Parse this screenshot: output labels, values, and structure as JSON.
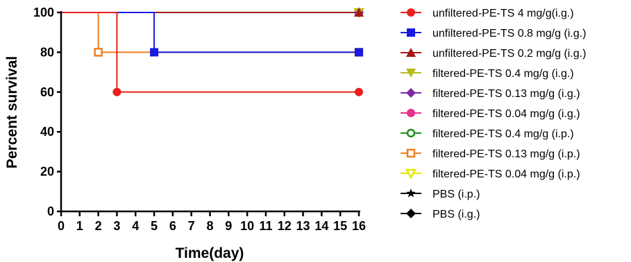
{
  "chart_data": {
    "type": "line",
    "step": true,
    "xlabel": "Time(day)",
    "ylabel": "Percent survival",
    "xlim": [
      0,
      16
    ],
    "ylim": [
      0,
      100
    ],
    "xticks": [
      "0",
      "1",
      "2",
      "3",
      "4",
      "5",
      "6",
      "7",
      "8",
      "9",
      "10",
      "11",
      "12",
      "13",
      "14",
      "15",
      "16"
    ],
    "yticks": [
      "0",
      "20",
      "40",
      "60",
      "80",
      "100"
    ],
    "grid": false,
    "legend_position": "right",
    "series": [
      {
        "name": "unfiltered-PE-TS 4 mg/g(i.g.)",
        "color": "#e8201c",
        "marker": "circle-filled",
        "x": [
          0,
          3,
          16
        ],
        "y": [
          100,
          60,
          60
        ],
        "markers": [
          [
            3,
            60
          ],
          [
            16,
            60
          ]
        ]
      },
      {
        "name": "unfiltered-PE-TS 0.8 mg/g (i.g.)",
        "color": "#1a1adf",
        "marker": "square-filled",
        "x": [
          0,
          5,
          16
        ],
        "y": [
          100,
          80,
          80
        ],
        "markers": [
          [
            5,
            80
          ],
          [
            16,
            80
          ]
        ]
      },
      {
        "name": "unfiltered-PE-TS 0.2 mg/g (i.g.)",
        "color": "#a31818",
        "marker": "triangle-up-filled",
        "x": [
          0,
          16
        ],
        "y": [
          100,
          100
        ],
        "markers": [
          [
            16,
            100
          ]
        ]
      },
      {
        "name": "filtered-PE-TS 0.4 mg/g (i.g.)",
        "color": "#b9b91e",
        "marker": "triangle-down-filled",
        "x": [
          0,
          16
        ],
        "y": [
          100,
          100
        ],
        "markers": [
          [
            16,
            100
          ]
        ]
      },
      {
        "name": "filtered-PE-TS 0.13 mg/g (i.g.)",
        "color": "#7b2ba3",
        "marker": "diamond-filled",
        "x": [
          0,
          16
        ],
        "y": [
          100,
          100
        ],
        "markers": [
          [
            16,
            100
          ]
        ]
      },
      {
        "name": "filtered-PE-TS 0.04 mg/g (i.g.)",
        "color": "#e8308c",
        "marker": "circle-filled",
        "x": [
          0,
          16
        ],
        "y": [
          100,
          100
        ],
        "markers": [
          [
            16,
            100
          ]
        ]
      },
      {
        "name": "filtered-PE-TS 0.4 mg/g (i.p.)",
        "color": "#1a8f1a",
        "marker": "circle-open",
        "x": [
          0,
          16
        ],
        "y": [
          100,
          100
        ],
        "markers": [
          [
            16,
            100
          ]
        ]
      },
      {
        "name": "filtered-PE-TS 0.13 mg/g (i.p.)",
        "color": "#f07f20",
        "marker": "square-open",
        "x": [
          0,
          2,
          16
        ],
        "y": [
          100,
          80,
          80
        ],
        "markers": [
          [
            2,
            80
          ],
          [
            16,
            80
          ]
        ]
      },
      {
        "name": "filtered-PE-TS 0.04 mg/g (i.p.)",
        "color": "#e6e600",
        "marker": "triangle-down-open",
        "x": [
          0,
          16
        ],
        "y": [
          100,
          100
        ],
        "markers": [
          [
            16,
            100
          ]
        ]
      },
      {
        "name": "PBS (i.p.)",
        "color": "#000000",
        "marker": "star",
        "x": [
          0,
          16
        ],
        "y": [
          100,
          100
        ],
        "markers": [
          [
            16,
            100
          ]
        ]
      },
      {
        "name": "PBS (i.g.)",
        "color": "#000000",
        "marker": "diamond-filled",
        "x": [
          0,
          16
        ],
        "y": [
          100,
          100
        ],
        "markers": [
          [
            16,
            100
          ]
        ]
      }
    ]
  }
}
